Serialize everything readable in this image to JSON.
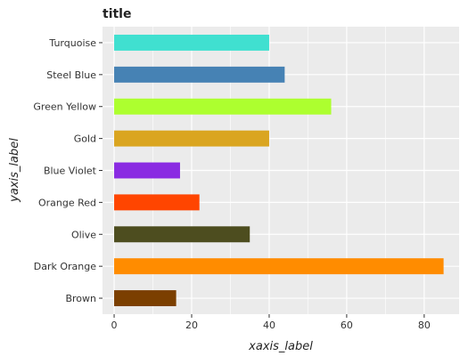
{
  "chart_data": {
    "type": "bar",
    "orientation": "horizontal",
    "title": "title",
    "xlabel": "xaxis_label",
    "ylabel": "yaxis_label",
    "categories": [
      "Brown",
      "Dark Orange",
      "Olive",
      "Orange Red",
      "Blue Violet",
      "Gold",
      "Green Yellow",
      "Steel Blue",
      "Turquoise"
    ],
    "values": [
      16,
      85,
      35,
      22,
      17,
      40,
      56,
      44,
      40
    ],
    "colors": [
      "#7b3f00",
      "#ff8c00",
      "#4d4d1f",
      "#ff4500",
      "#8a2be2",
      "#daa520",
      "#adff2f",
      "#4682b4",
      "#40e0d0"
    ],
    "xlim": [
      -3,
      89
    ],
    "x_ticks": [
      0,
      20,
      40,
      60,
      80
    ],
    "grid": true,
    "background": "#ebebeb"
  }
}
